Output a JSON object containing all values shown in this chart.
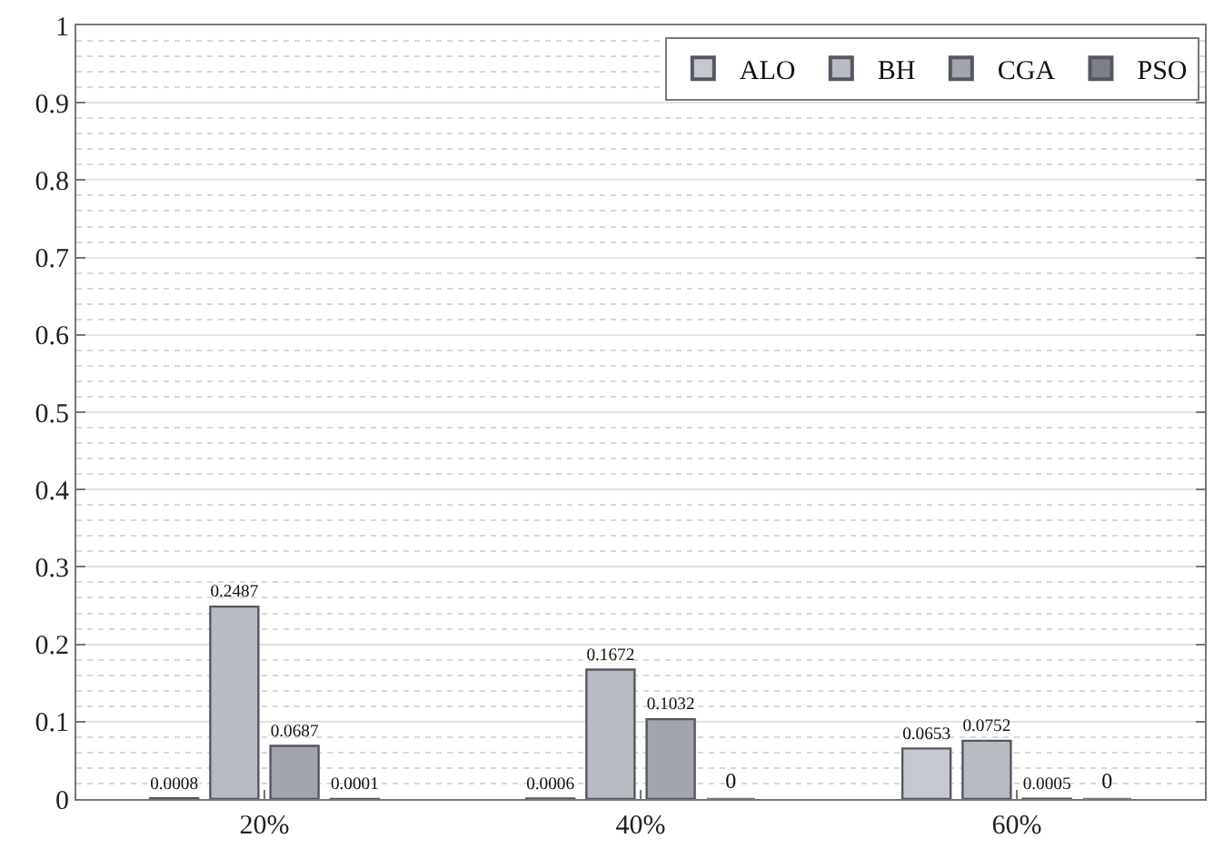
{
  "chart_data": {
    "type": "bar",
    "categories": [
      "20%",
      "40%",
      "60%"
    ],
    "series": [
      {
        "name": "ALO",
        "color": "#c6c9cf",
        "values": [
          0.0008,
          0.0006,
          0.0653
        ]
      },
      {
        "name": "BH",
        "color": "#b8bbc2",
        "values": [
          0.2487,
          0.1672,
          0.0752
        ]
      },
      {
        "name": "CGA",
        "color": "#a2a5ac",
        "values": [
          0.0687,
          0.1032,
          0.0005
        ]
      },
      {
        "name": "PSO",
        "color": "#7c7f87",
        "values": [
          0.0001,
          0,
          0
        ]
      }
    ],
    "ylim": [
      0,
      1
    ],
    "yticks": [
      0,
      0.1,
      0.2,
      0.3,
      0.4,
      0.5,
      0.6,
      0.7,
      0.8,
      0.9,
      1
    ],
    "grid": "y",
    "legend": "top right",
    "data_labels": true
  }
}
